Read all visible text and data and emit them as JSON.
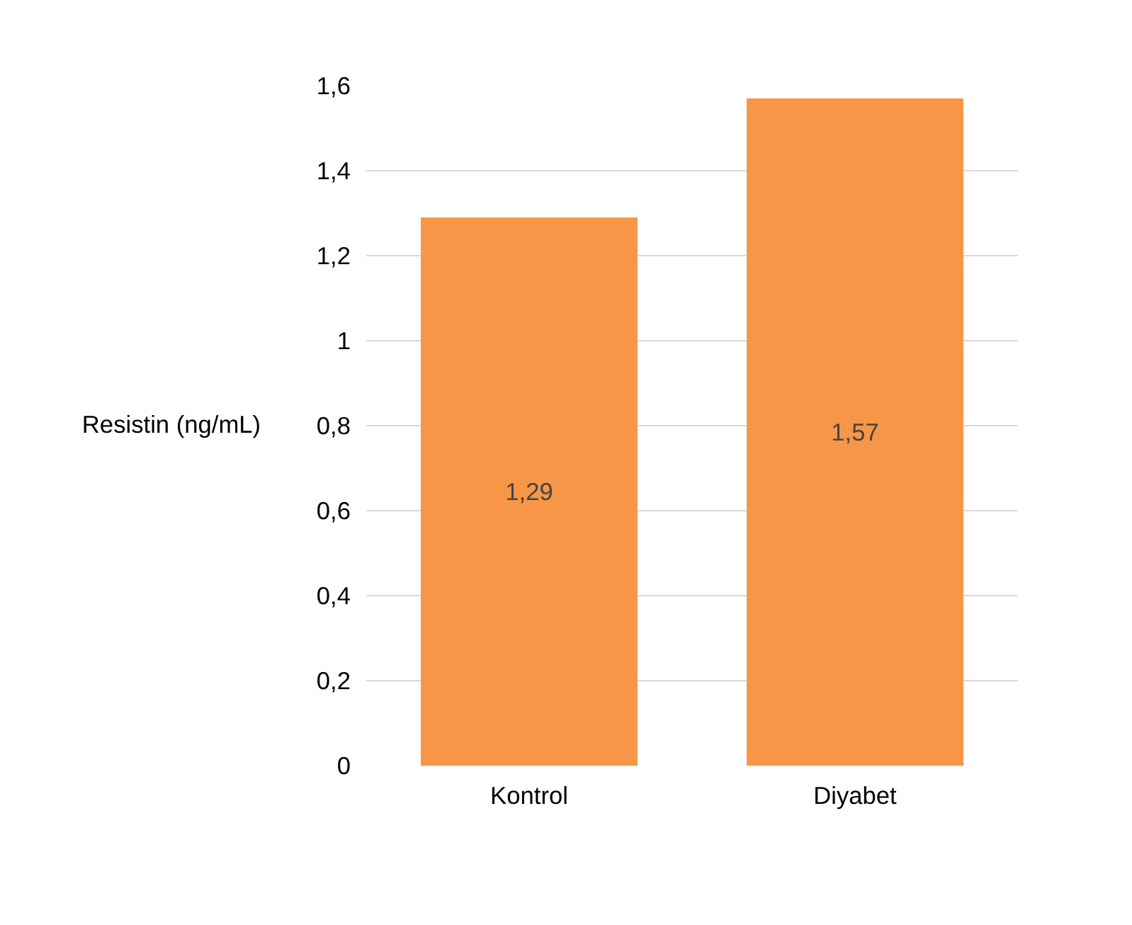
{
  "chart_data": {
    "type": "bar",
    "categories": [
      "Kontrol",
      "Diyabet"
    ],
    "series": [
      {
        "name": "Resistin (ng/mL)",
        "color": "#f79646",
        "values": [
          1.29,
          1.57
        ],
        "value_labels": [
          "1,29",
          "1,57"
        ]
      }
    ],
    "ylim": [
      0,
      1.6
    ],
    "yticks": [
      0,
      {
        "value": 0.2,
        "label": "0,2"
      },
      {
        "value": 0.4,
        "label": "0,4"
      },
      {
        "value": 0.6,
        "label": "0,6"
      },
      {
        "value": 0.8,
        "label": "0,8"
      },
      1,
      {
        "value": 1.2,
        "label": "1,2"
      },
      {
        "value": 1.4,
        "label": "1,4"
      },
      {
        "value": 1.6,
        "label": "1,6"
      }
    ],
    "grid": "y",
    "legend": "left"
  }
}
